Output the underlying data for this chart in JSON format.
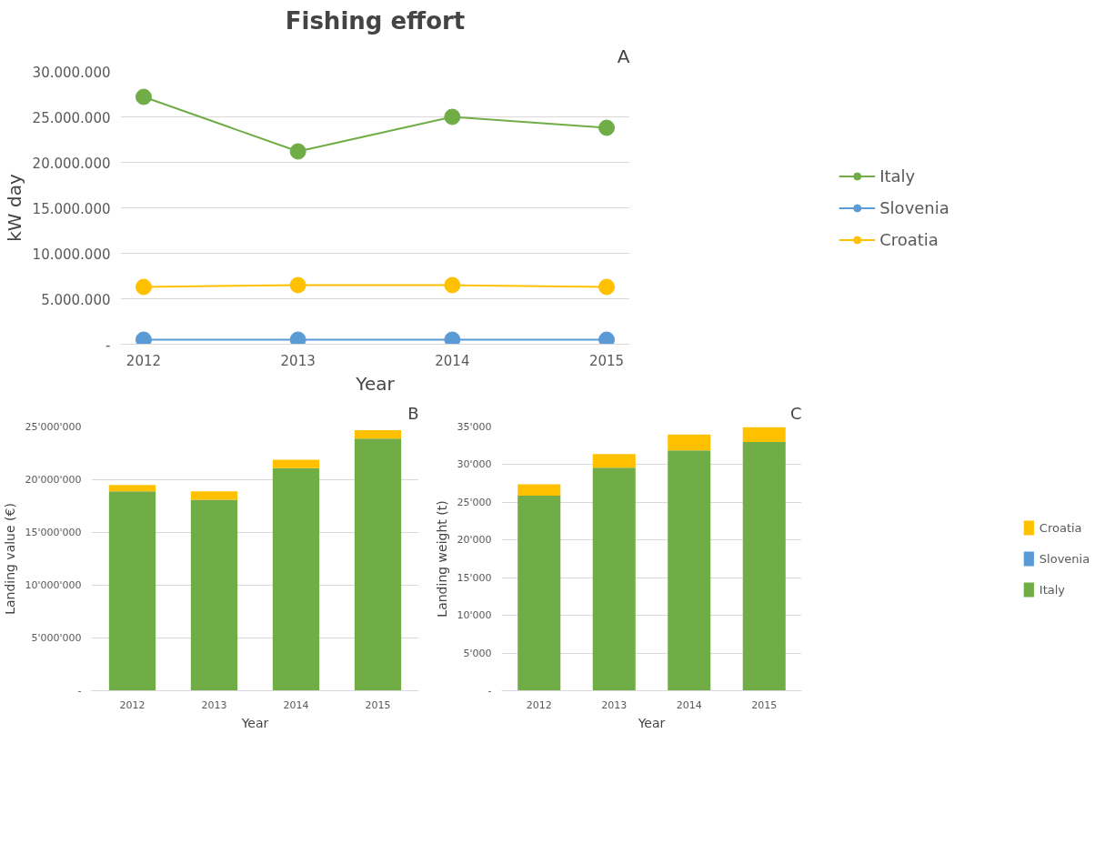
{
  "chart_data": [
    {
      "type": "line",
      "title": "Fishing effort",
      "xlabel": "Year",
      "ylabel": "kW day",
      "annotations": [
        "A"
      ],
      "categories": [
        "2012",
        "2013",
        "2014",
        "2015"
      ],
      "series": [
        {
          "name": "Italy",
          "color": "#70ad47",
          "values": [
            27200000,
            21200000,
            25000000,
            23800000
          ]
        },
        {
          "name": "Slovenia",
          "color": "#5b9bd5",
          "values": [
            500000,
            500000,
            500000,
            500000
          ]
        },
        {
          "name": "Croatia",
          "color": "#ffc000",
          "values": [
            6300000,
            6500000,
            6500000,
            6300000
          ]
        }
      ],
      "ylim": [
        0,
        30000000
      ],
      "yticks": [
        {
          "value": 0,
          "label": "-"
        },
        {
          "value": 5000000,
          "label": "5.000.000"
        },
        {
          "value": 10000000,
          "label": "10.000.000"
        },
        {
          "value": 15000000,
          "label": "15.000.000"
        },
        {
          "value": 20000000,
          "label": "20.000.000"
        },
        {
          "value": 25000000,
          "label": "25.000.000"
        },
        {
          "value": 30000000,
          "label": "30.000.000"
        }
      ],
      "grid": "y",
      "legend": "right",
      "marker": "circle",
      "line_style": "solid"
    },
    {
      "type": "bar",
      "stacked": true,
      "xlabel": "Year",
      "ylabel": "Landing value (€)",
      "annotations": [
        "B"
      ],
      "categories": [
        "2012",
        "2013",
        "2014",
        "2015"
      ],
      "series": [
        {
          "color": "#70ad47",
          "values": [
            18900000,
            18100000,
            21100000,
            23900000
          ]
        },
        {
          "color": "#5b9bd5",
          "values": [
            0,
            0,
            0,
            0
          ]
        },
        {
          "color": "#ffc000",
          "values": [
            600000,
            800000,
            800000,
            800000
          ]
        }
      ],
      "ylim": [
        0,
        25000000
      ],
      "yticks": [
        {
          "value": 0,
          "label": "-"
        },
        {
          "value": 5000000,
          "label": "5'000'000"
        },
        {
          "value": 10000000,
          "label": "10'000'000"
        },
        {
          "value": 15000000,
          "label": "15'000'000"
        },
        {
          "value": 20000000,
          "label": "20'000'000"
        },
        {
          "value": 25000000,
          "label": "25'000'000"
        }
      ],
      "grid": "y"
    },
    {
      "type": "bar",
      "stacked": true,
      "xlabel": "Year",
      "ylabel": "Landing weight (t)",
      "annotations": [
        "C"
      ],
      "categories": [
        "2012",
        "2013",
        "2014",
        "2015"
      ],
      "series": [
        {
          "name": "Italy",
          "color": "#70ad47",
          "values": [
            25900,
            29600,
            31900,
            33000
          ]
        },
        {
          "name": "Slovenia",
          "color": "#5b9bd5",
          "values": [
            0,
            0,
            0,
            0
          ]
        },
        {
          "name": "Croatia",
          "color": "#ffc000",
          "values": [
            1500,
            1800,
            2100,
            2000
          ]
        }
      ],
      "ylim": [
        0,
        35000
      ],
      "yticks": [
        {
          "value": 0,
          "label": "-"
        },
        {
          "value": 5000,
          "label": "5'000"
        },
        {
          "value": 10000,
          "label": "10'000"
        },
        {
          "value": 15000,
          "label": "15'000"
        },
        {
          "value": 20000,
          "label": "20'000"
        },
        {
          "value": 25000,
          "label": "25'000"
        },
        {
          "value": 30000,
          "label": "30'000"
        },
        {
          "value": 35000,
          "label": "35'000"
        }
      ],
      "grid": "y",
      "legend": "right"
    }
  ]
}
